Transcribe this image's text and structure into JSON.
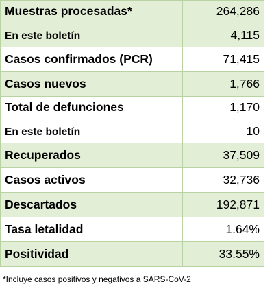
{
  "rows": [
    {
      "label": "Muestras procesadas*",
      "value": "264,286",
      "sub_label": "En este boletín",
      "sub_value": "4,115"
    },
    {
      "label": "Casos confirmados (PCR)",
      "value": "71,415"
    },
    {
      "label": "Casos nuevos",
      "value": "1,766"
    },
    {
      "label": "Total de defunciones",
      "value": "1,170",
      "sub_label": "En este boletín",
      "sub_value": "10"
    },
    {
      "label": "Recuperados",
      "value": "37,509"
    },
    {
      "label": "Casos activos",
      "value": "32,736"
    },
    {
      "label": "Descartados",
      "value": "192,871"
    },
    {
      "label": "Tasa letalidad",
      "value": "1.64%"
    },
    {
      "label": "Positividad",
      "value": "33.55%"
    }
  ],
  "footnote": "*Incluye casos positivos y negativos a SARS-CoV-2",
  "colors": {
    "row_green": "#e3eed6",
    "border": "#b7d3a1"
  }
}
